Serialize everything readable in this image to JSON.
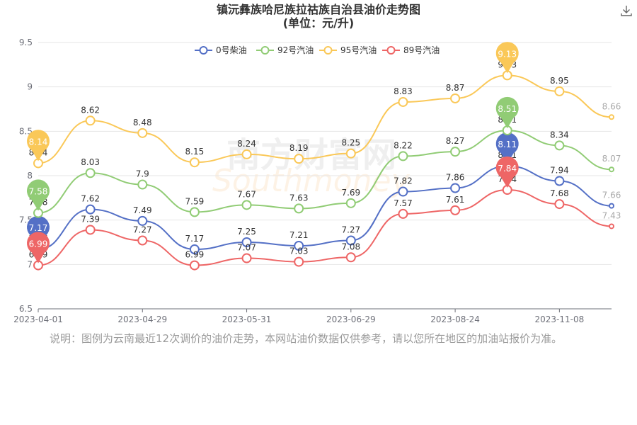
{
  "title": {
    "line1": "镇沅彝族哈尼族拉祜族自治县油价走势图",
    "line2": "(单位：元/升)"
  },
  "toolbar": {
    "download_icon": "download-icon"
  },
  "note": "说明：图例为云南最近12次调价的油价走势，本网站油价数据仅供参考，请以您所在地区的加油站报价为准。",
  "watermark": {
    "cn": "南方财富网",
    "en": "Southmoney"
  },
  "chart_data": {
    "type": "line",
    "smooth": true,
    "x_ticks": [
      "2023-04-01",
      "2023-04-29",
      "2023-05-31",
      "2023-06-29",
      "2023-08-24",
      "2023-11-08"
    ],
    "y_ticks": [
      "6.5",
      "7",
      "7.5",
      "8",
      "8.5",
      "9",
      "9.5"
    ],
    "ylim": [
      6.5,
      9.5
    ],
    "grid": true,
    "legend_position": "top-center",
    "series": [
      {
        "name": "0号柴油",
        "color": "#5470c6",
        "values": [
          7.17,
          7.62,
          7.49,
          7.17,
          7.25,
          7.21,
          7.27,
          7.82,
          7.86,
          8.11,
          7.94,
          7.66
        ],
        "max_label": "8.11",
        "min_label": "7.17"
      },
      {
        "name": "92号汽油",
        "color": "#91cc75",
        "values": [
          7.58,
          8.03,
          7.9,
          7.59,
          7.67,
          7.63,
          7.69,
          8.22,
          8.27,
          8.51,
          8.34,
          8.07
        ],
        "max_label": "8.51",
        "min_label": "7.58"
      },
      {
        "name": "95号汽油",
        "color": "#fac858",
        "values": [
          8.14,
          8.62,
          8.48,
          8.15,
          8.24,
          8.19,
          8.25,
          8.83,
          8.87,
          9.13,
          8.95,
          8.66
        ],
        "max_label": "9.13",
        "min_label": "8.14"
      },
      {
        "name": "89号汽油",
        "color": "#ee6666",
        "values": [
          6.99,
          7.39,
          7.27,
          6.99,
          7.07,
          7.03,
          7.08,
          7.57,
          7.61,
          7.84,
          7.68,
          7.43
        ],
        "max_label": "7.84",
        "min_label": "6.99"
      }
    ]
  }
}
